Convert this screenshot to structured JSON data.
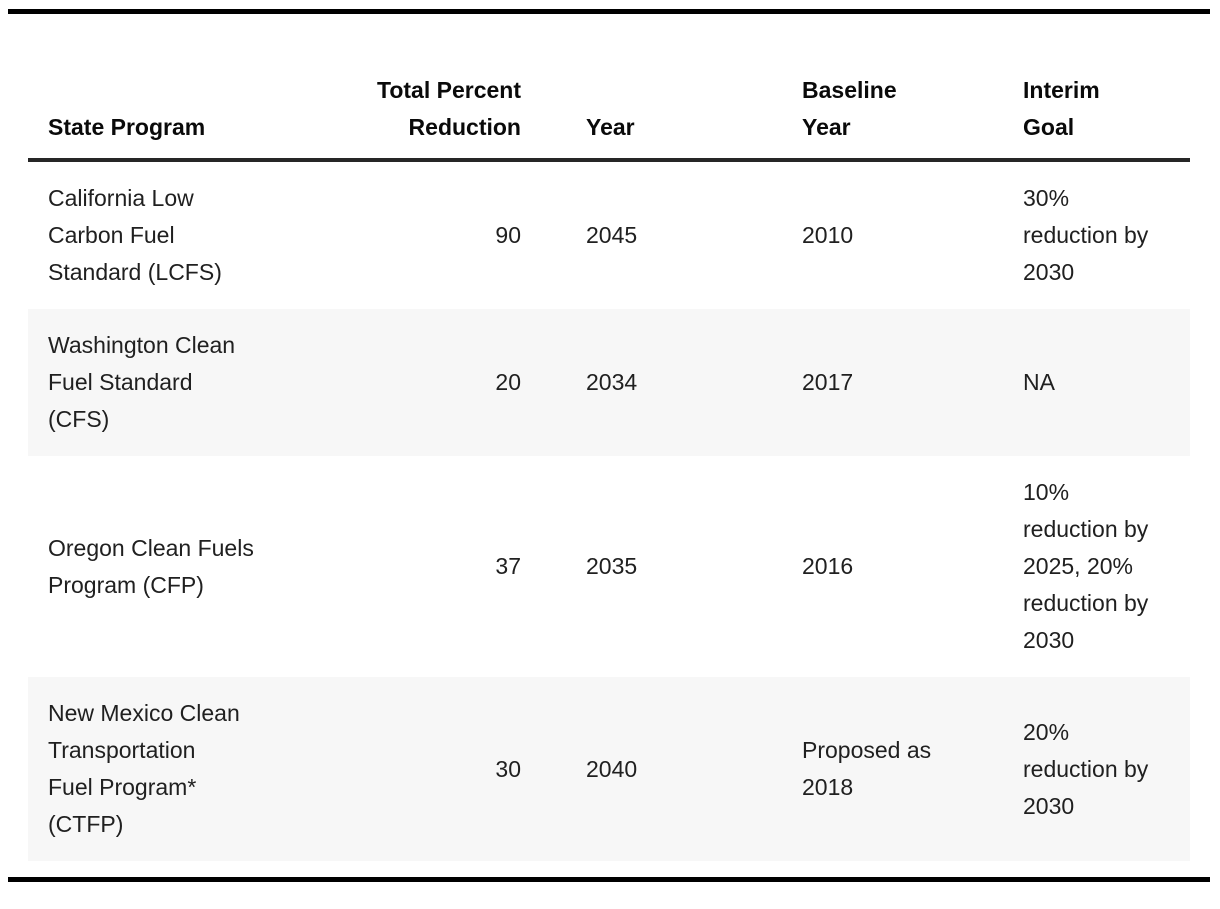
{
  "colors": {
    "rule": "#000000",
    "header_underline": "#262626",
    "stripe": "#f7f7f7",
    "text": "#202020"
  },
  "table": {
    "columns": [
      {
        "label": "State Program",
        "align": "left"
      },
      {
        "label": "Total Percent\nReduction",
        "align": "right"
      },
      {
        "label": "Year",
        "align": "left"
      },
      {
        "label": "Baseline\nYear",
        "align": "left"
      },
      {
        "label": "Interim\nGoal",
        "align": "left"
      }
    ],
    "rows": [
      {
        "program": "California Low\nCarbon Fuel\nStandard (LCFS)",
        "total_percent_reduction": "90",
        "year": "2045",
        "baseline_year": "2010",
        "interim_goal": "30%\nreduction by\n2030"
      },
      {
        "program": "Washington Clean\nFuel Standard\n(CFS)",
        "total_percent_reduction": "20",
        "year": "2034",
        "baseline_year": "2017",
        "interim_goal": "NA"
      },
      {
        "program": "Oregon Clean Fuels\nProgram (CFP)",
        "total_percent_reduction": "37",
        "year": "2035",
        "baseline_year": "2016",
        "interim_goal": "10%\nreduction by\n2025, 20%\nreduction by\n2030"
      },
      {
        "program": "New Mexico Clean\nTransportation\nFuel Program*\n(CTFP)",
        "total_percent_reduction": "30",
        "year": "2040",
        "baseline_year": "Proposed as\n2018",
        "interim_goal": "20%\nreduction by\n2030"
      }
    ]
  }
}
